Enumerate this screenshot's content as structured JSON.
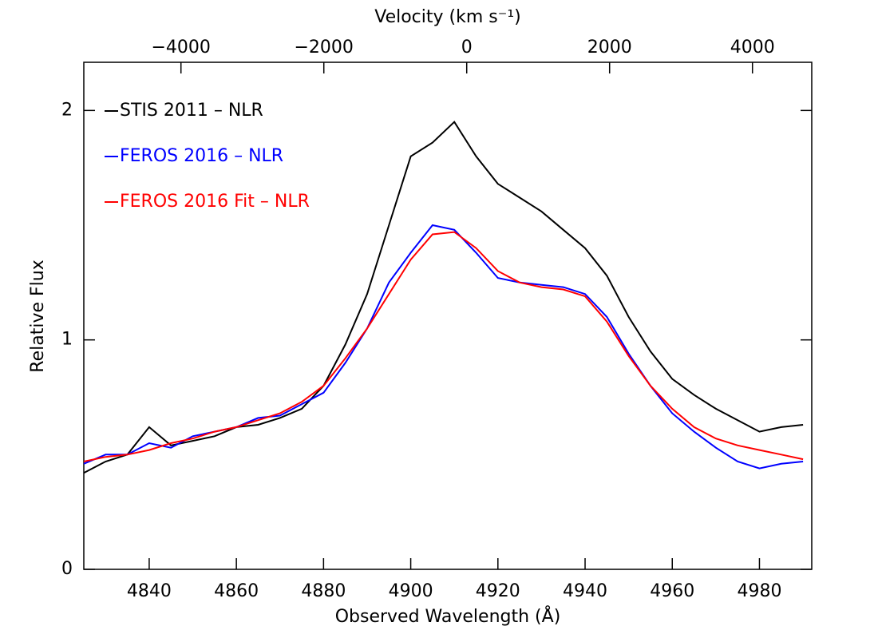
{
  "chart_data": {
    "type": "line",
    "xlabel": "Observed Wavelength (Å)",
    "ylabel": "Relative Flux",
    "x2label": "Velocity (km s⁻¹)",
    "x": [
      4825,
      4830,
      4835,
      4840,
      4845,
      4850,
      4855,
      4860,
      4865,
      4870,
      4875,
      4880,
      4885,
      4890,
      4895,
      4900,
      4905,
      4910,
      4915,
      4920,
      4925,
      4930,
      4935,
      4940,
      4945,
      4950,
      4955,
      4960,
      4965,
      4970,
      4975,
      4980,
      4985,
      4990
    ],
    "series": [
      {
        "name": "STIS 2011 – NLR",
        "color": "#000000",
        "values": [
          0.42,
          0.47,
          0.5,
          0.62,
          0.54,
          0.56,
          0.58,
          0.62,
          0.63,
          0.66,
          0.7,
          0.8,
          0.98,
          1.2,
          1.5,
          1.8,
          1.86,
          1.95,
          1.8,
          1.68,
          1.62,
          1.56,
          1.48,
          1.4,
          1.28,
          1.1,
          0.95,
          0.83,
          0.76,
          0.7,
          0.65,
          0.6,
          0.62,
          0.63
        ]
      },
      {
        "name": "FEROS 2016 – NLR",
        "color": "#0000ff",
        "values": [
          0.46,
          0.5,
          0.5,
          0.55,
          0.53,
          0.58,
          0.6,
          0.62,
          0.66,
          0.67,
          0.72,
          0.77,
          0.9,
          1.05,
          1.25,
          1.38,
          1.5,
          1.48,
          1.38,
          1.27,
          1.25,
          1.24,
          1.23,
          1.2,
          1.1,
          0.94,
          0.8,
          0.68,
          0.6,
          0.53,
          0.47,
          0.44,
          0.46,
          0.47
        ]
      },
      {
        "name": "FEROS 2016 Fit – NLR",
        "color": "#ff0000",
        "values": [
          0.47,
          0.49,
          0.5,
          0.52,
          0.55,
          0.57,
          0.6,
          0.62,
          0.65,
          0.68,
          0.73,
          0.8,
          0.92,
          1.05,
          1.2,
          1.35,
          1.46,
          1.47,
          1.4,
          1.3,
          1.25,
          1.23,
          1.22,
          1.19,
          1.08,
          0.93,
          0.8,
          0.7,
          0.62,
          0.57,
          0.54,
          0.52,
          0.5,
          0.48
        ]
      }
    ],
    "xlim": [
      4825,
      4992
    ],
    "xticks": [
      4840,
      4860,
      4880,
      4900,
      4920,
      4940,
      4960,
      4980
    ],
    "x2lim": [
      -5360,
      4830
    ],
    "x2ticks": [
      {
        "value": -4000,
        "label": "−4000"
      },
      {
        "value": -2000,
        "label": "−2000"
      },
      0,
      2000,
      4000
    ],
    "ylim": [
      0,
      2.21
    ],
    "yticks": [
      0,
      1,
      2
    ],
    "legend": "upper-left",
    "grid": false
  }
}
